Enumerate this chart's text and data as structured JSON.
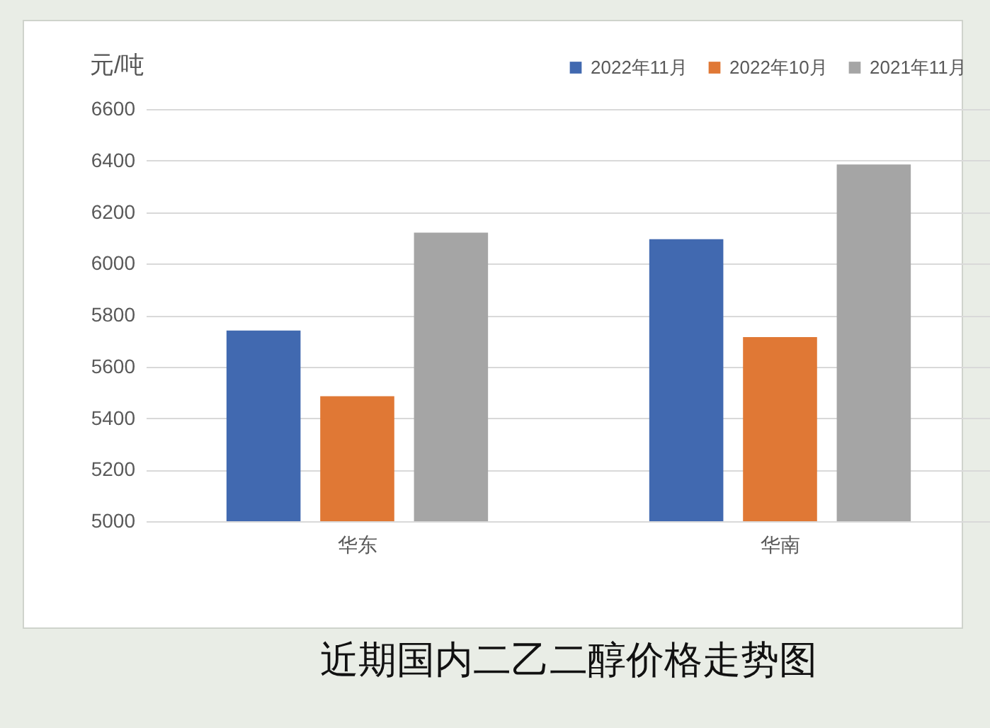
{
  "chart_data": {
    "type": "bar",
    "title": "近期国内二乙二醇价格走势图",
    "ylabel": "元/吨",
    "categories": [
      "华东",
      "华南"
    ],
    "series": [
      {
        "name": "2022年11月",
        "color": "#4169b0",
        "values": [
          5740,
          6095
        ]
      },
      {
        "name": "2022年10月",
        "color": "#e07835",
        "values": [
          5485,
          5715
        ]
      },
      {
        "name": "2021年11月",
        "color": "#a5a5a5",
        "values": [
          6120,
          6385
        ]
      }
    ],
    "ylim": [
      5000,
      6600
    ],
    "yticks": [
      5000,
      5200,
      5400,
      5600,
      5800,
      6000,
      6200,
      6400,
      6600
    ],
    "grid": "y",
    "legend": "top right"
  }
}
